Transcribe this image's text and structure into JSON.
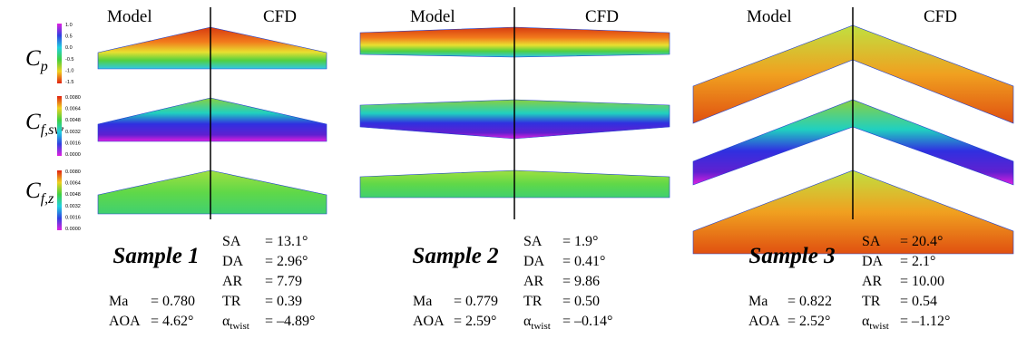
{
  "row_labels": [
    {
      "main": "C",
      "sub": "p"
    },
    {
      "main": "C",
      "sub": "f,sw"
    },
    {
      "main": "C",
      "sub": "f,z"
    }
  ],
  "colorbars": [
    {
      "ticks": [
        "1.0",
        "0.5",
        "0.0",
        "-0.5",
        "-1.0",
        "-1.5"
      ]
    },
    {
      "ticks": [
        "0.0080",
        "0.0064",
        "0.0048",
        "0.0032",
        "0.0016",
        "0.0000"
      ]
    },
    {
      "ticks": [
        "0.0080",
        "0.0064",
        "0.0048",
        "0.0032",
        "0.0016",
        "0.0000"
      ]
    }
  ],
  "samples": [
    {
      "title": "Sample 1",
      "headers": [
        "Model",
        "CFD"
      ],
      "params": [
        {
          "name": "SA",
          "value": "= 13.1°"
        },
        {
          "name": "DA",
          "value": "= 2.96°"
        },
        {
          "name": "AR",
          "value": "= 7.79"
        },
        {
          "name": "TR",
          "value": "= 0.39"
        },
        {
          "name": "α",
          "sub": "twist",
          "value": "= –4.89°"
        }
      ],
      "flow": [
        {
          "name": "Ma",
          "value": "= 0.780"
        },
        {
          "name": "AOA",
          "value": "= 4.62°"
        }
      ]
    },
    {
      "title": "Sample 2",
      "headers": [
        "Model",
        "CFD"
      ],
      "params": [
        {
          "name": "SA",
          "value": "= 1.9°"
        },
        {
          "name": "DA",
          "value": "= 0.41°"
        },
        {
          "name": "AR",
          "value": "= 9.86"
        },
        {
          "name": "TR",
          "value": "= 0.50"
        },
        {
          "name": "α",
          "sub": "twist",
          "value": "= –0.14°"
        }
      ],
      "flow": [
        {
          "name": "Ma",
          "value": "= 0.779"
        },
        {
          "name": "AOA",
          "value": "= 2.59°"
        }
      ]
    },
    {
      "title": "Sample 3",
      "headers": [
        "Model",
        "CFD"
      ],
      "params": [
        {
          "name": "SA",
          "value": "= 20.4°"
        },
        {
          "name": "DA",
          "value": "= 2.1°"
        },
        {
          "name": "AR",
          "value": "= 10.00"
        },
        {
          "name": "TR",
          "value": "= 0.54"
        },
        {
          "name": "α",
          "sub": "twist",
          "value": "= –1.12°"
        }
      ],
      "flow": [
        {
          "name": "Ma",
          "value": "= 0.822"
        },
        {
          "name": "AOA",
          "value": "= 2.52°"
        }
      ]
    }
  ]
}
